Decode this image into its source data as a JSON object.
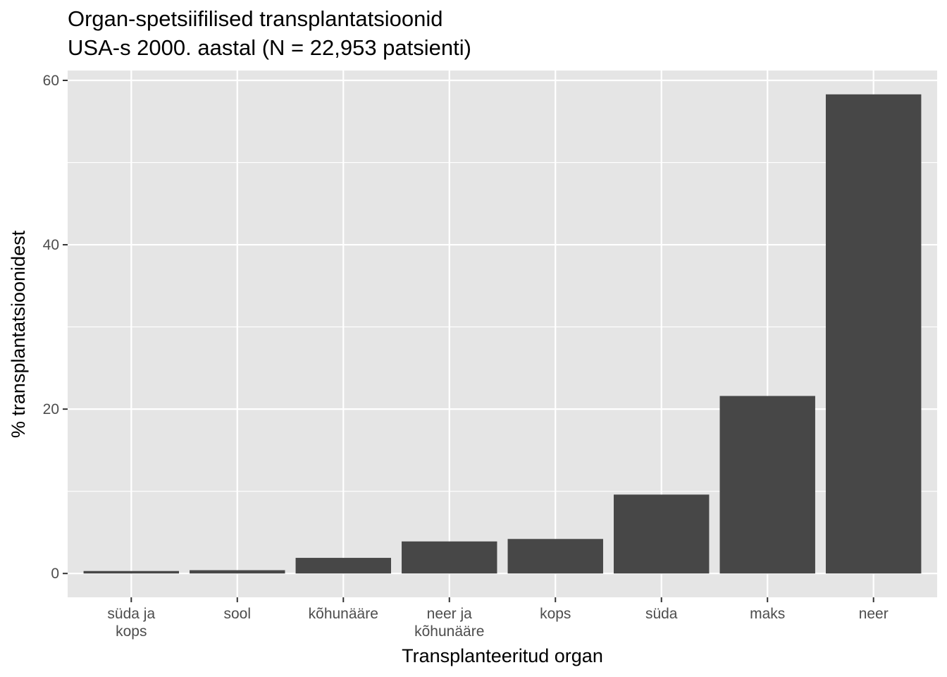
{
  "chart_data": {
    "type": "bar",
    "title": [
      "Organ-spetsiifilised transplantatsioonid",
      "USA-s 2000. aastal (N = 22,953 patsienti)"
    ],
    "xlabel": "Transplanteeritud organ",
    "ylabel": "% transplantatsioonidest",
    "categories": [
      [
        "süda ja",
        "kops"
      ],
      [
        "sool"
      ],
      [
        "kõhunääre"
      ],
      [
        "neer ja",
        "kõhunääre"
      ],
      [
        "kops"
      ],
      [
        "süda"
      ],
      [
        "maks"
      ],
      [
        "neer"
      ]
    ],
    "values": [
      0.3,
      0.4,
      1.9,
      3.9,
      4.2,
      9.6,
      21.6,
      58.3
    ],
    "y_ticks": [
      0,
      20,
      40,
      60
    ],
    "y_tick_labels": [
      "0",
      "20",
      "40",
      "60"
    ],
    "ylim": [
      -2.9,
      61.2
    ],
    "grid": true,
    "colors": {
      "panel_bg": "#e5e5e5",
      "grid": "#ffffff",
      "bar": "#474747",
      "tick_text": "#4d4d4d",
      "tick_mark": "#333333"
    }
  }
}
